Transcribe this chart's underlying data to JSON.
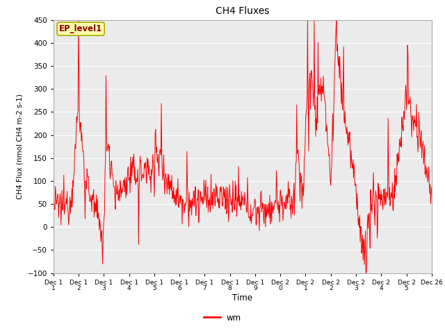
{
  "title": "CH4 Fluxes",
  "xlabel": "Time",
  "ylabel": "CH4 Flux (nmol CH4 m-2 s-1)",
  "ylim": [
    -100,
    450
  ],
  "yticks": [
    -100,
    -50,
    0,
    50,
    100,
    150,
    200,
    250,
    300,
    350,
    400,
    450
  ],
  "line_color": "#FF0000",
  "line_width": 0.7,
  "legend_label": "wm",
  "annotation_text": "EP_level1",
  "annotation_facecolor": "#FFFFAA",
  "annotation_edgecolor": "#AAAA00",
  "annotation_text_color": "#880000",
  "bg_color": "#EBEBEB",
  "grid_color": "#FFFFFF",
  "x_tick_labels": [
    "Dec 1\n1",
    "Dec 1\n2",
    "Dec 1\n3",
    "Dec 1\n4",
    "Dec 1\n5",
    "Dec 1\n6",
    "Dec 1\n7",
    "Dec 1\n8",
    "Dec 1\n9",
    "Dec 2\n0",
    "Dec 2\n1",
    "Dec 2\n2",
    "Dec 2\n3",
    "Dec 2\n4",
    "Dec 2\n5",
    "Dec 26"
  ],
  "n_points": 800,
  "seed": 12345
}
